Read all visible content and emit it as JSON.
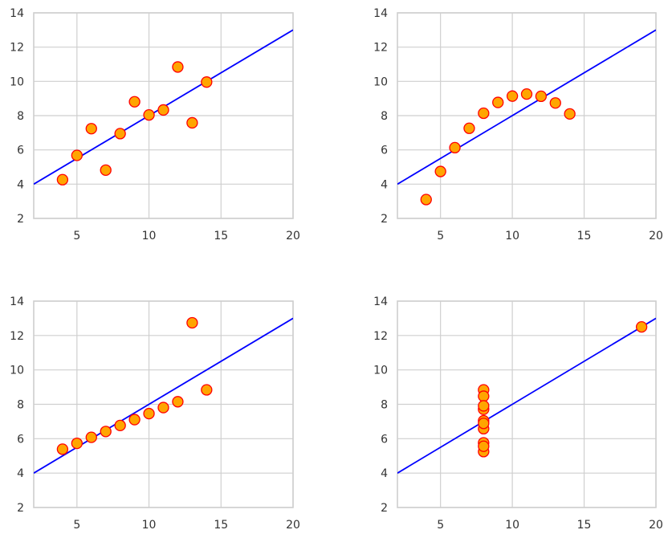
{
  "chart_data": [
    {
      "type": "scatter",
      "xlim": [
        2,
        20
      ],
      "ylim": [
        2,
        14
      ],
      "xticks": [
        "5",
        "10",
        "15",
        "20"
      ],
      "yticks": [
        "2",
        "4",
        "6",
        "8",
        "10",
        "12",
        "14"
      ],
      "grid": true,
      "fit_line": {
        "intercept": 3.0,
        "slope": 0.5
      },
      "points": [
        {
          "x": 4,
          "y": 4.26
        },
        {
          "x": 5,
          "y": 5.68
        },
        {
          "x": 6,
          "y": 7.24
        },
        {
          "x": 7,
          "y": 4.82
        },
        {
          "x": 8,
          "y": 6.95
        },
        {
          "x": 9,
          "y": 8.81
        },
        {
          "x": 10,
          "y": 8.04
        },
        {
          "x": 11,
          "y": 8.33
        },
        {
          "x": 12,
          "y": 10.84
        },
        {
          "x": 13,
          "y": 7.58
        },
        {
          "x": 14,
          "y": 9.96
        }
      ]
    },
    {
      "type": "scatter",
      "xlim": [
        2,
        20
      ],
      "ylim": [
        2,
        14
      ],
      "xticks": [
        "5",
        "10",
        "15",
        "20"
      ],
      "yticks": [
        "2",
        "4",
        "6",
        "8",
        "10",
        "12",
        "14"
      ],
      "grid": true,
      "fit_line": {
        "intercept": 3.0,
        "slope": 0.5
      },
      "points": [
        {
          "x": 4,
          "y": 3.1
        },
        {
          "x": 5,
          "y": 4.74
        },
        {
          "x": 6,
          "y": 6.13
        },
        {
          "x": 7,
          "y": 7.26
        },
        {
          "x": 8,
          "y": 8.14
        },
        {
          "x": 9,
          "y": 8.77
        },
        {
          "x": 10,
          "y": 9.14
        },
        {
          "x": 11,
          "y": 9.26
        },
        {
          "x": 12,
          "y": 9.13
        },
        {
          "x": 13,
          "y": 8.74
        },
        {
          "x": 14,
          "y": 8.1
        }
      ]
    },
    {
      "type": "scatter",
      "xlim": [
        2,
        20
      ],
      "ylim": [
        2,
        14
      ],
      "xticks": [
        "5",
        "10",
        "15",
        "20"
      ],
      "yticks": [
        "2",
        "4",
        "6",
        "8",
        "10",
        "12",
        "14"
      ],
      "grid": true,
      "fit_line": {
        "intercept": 3.0,
        "slope": 0.5
      },
      "points": [
        {
          "x": 4,
          "y": 5.39
        },
        {
          "x": 5,
          "y": 5.73
        },
        {
          "x": 6,
          "y": 6.08
        },
        {
          "x": 7,
          "y": 6.42
        },
        {
          "x": 8,
          "y": 6.77
        },
        {
          "x": 9,
          "y": 7.11
        },
        {
          "x": 10,
          "y": 7.46
        },
        {
          "x": 11,
          "y": 7.81
        },
        {
          "x": 12,
          "y": 8.15
        },
        {
          "x": 13,
          "y": 12.74
        },
        {
          "x": 14,
          "y": 8.84
        }
      ]
    },
    {
      "type": "scatter",
      "xlim": [
        2,
        20
      ],
      "ylim": [
        2,
        14
      ],
      "xticks": [
        "5",
        "10",
        "15",
        "20"
      ],
      "yticks": [
        "2",
        "4",
        "6",
        "8",
        "10",
        "12",
        "14"
      ],
      "grid": true,
      "fit_line": {
        "intercept": 3.0,
        "slope": 0.5
      },
      "points": [
        {
          "x": 8,
          "y": 6.58
        },
        {
          "x": 8,
          "y": 5.76
        },
        {
          "x": 8,
          "y": 7.71
        },
        {
          "x": 8,
          "y": 8.84
        },
        {
          "x": 8,
          "y": 8.47
        },
        {
          "x": 8,
          "y": 7.04
        },
        {
          "x": 8,
          "y": 5.25
        },
        {
          "x": 19,
          "y": 12.5
        },
        {
          "x": 8,
          "y": 5.56
        },
        {
          "x": 8,
          "y": 7.91
        },
        {
          "x": 8,
          "y": 6.89
        }
      ]
    }
  ],
  "style": {
    "marker_fill": "#FFA500",
    "marker_edge": "#FF0000",
    "line_color": "#0000FF",
    "grid_color": "#CFCFCF"
  }
}
